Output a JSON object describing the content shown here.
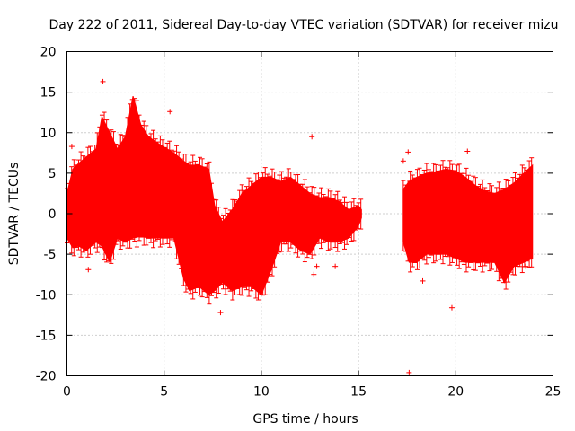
{
  "chart_data": {
    "type": "scatter",
    "title": "Day 222 of 2011, Sidereal Day-to-day VTEC variation (SDTVAR) for receiver mizu",
    "xlabel": "GPS time / hours",
    "ylabel": "SDTVAR / TECUs",
    "xlim": [
      0,
      25
    ],
    "ylim": [
      -20,
      20
    ],
    "x_ticks": [
      0,
      5,
      10,
      15,
      20,
      25
    ],
    "y_ticks": [
      -20,
      -15,
      -10,
      -5,
      0,
      5,
      10,
      15,
      20
    ],
    "grid": true,
    "marker": "+",
    "color": "#ff0000",
    "series": [
      {
        "name": "SDTVAR",
        "envelope": [
          {
            "x": 0.0,
            "lo": -3.0,
            "hi": 2.5
          },
          {
            "x": 0.3,
            "lo": -4.2,
            "hi": 5.5
          },
          {
            "x": 0.6,
            "lo": -4.0,
            "hi": 6.2
          },
          {
            "x": 1.0,
            "lo": -4.5,
            "hi": 7.0
          },
          {
            "x": 1.5,
            "lo": -3.5,
            "hi": 8.0
          },
          {
            "x": 1.8,
            "lo": -4.0,
            "hi": 12.0
          },
          {
            "x": 2.2,
            "lo": -6.0,
            "hi": 10.0
          },
          {
            "x": 2.6,
            "lo": -3.0,
            "hi": 8.0
          },
          {
            "x": 3.0,
            "lo": -3.5,
            "hi": 9.5
          },
          {
            "x": 3.4,
            "lo": -3.0,
            "hi": 14.5
          },
          {
            "x": 3.8,
            "lo": -2.8,
            "hi": 11.0
          },
          {
            "x": 4.2,
            "lo": -3.0,
            "hi": 9.5
          },
          {
            "x": 4.8,
            "lo": -3.0,
            "hi": 8.5
          },
          {
            "x": 5.5,
            "lo": -3.0,
            "hi": 7.5
          },
          {
            "x": 6.0,
            "lo": -8.0,
            "hi": 6.5
          },
          {
            "x": 6.3,
            "lo": -9.5,
            "hi": 6.0
          },
          {
            "x": 6.8,
            "lo": -9.0,
            "hi": 6.0
          },
          {
            "x": 7.3,
            "lo": -10.0,
            "hi": 5.5
          },
          {
            "x": 7.6,
            "lo": -9.5,
            "hi": 1.0
          },
          {
            "x": 8.0,
            "lo": -8.5,
            "hi": -1.0
          },
          {
            "x": 8.5,
            "lo": -9.5,
            "hi": 0.5
          },
          {
            "x": 9.0,
            "lo": -9.0,
            "hi": 2.5
          },
          {
            "x": 9.5,
            "lo": -9.0,
            "hi": 3.5
          },
          {
            "x": 10.0,
            "lo": -10.0,
            "hi": 4.5
          },
          {
            "x": 10.5,
            "lo": -7.0,
            "hi": 4.5
          },
          {
            "x": 11.0,
            "lo": -3.5,
            "hi": 4.0
          },
          {
            "x": 11.5,
            "lo": -3.5,
            "hi": 4.5
          },
          {
            "x": 12.0,
            "lo": -4.5,
            "hi": 3.5
          },
          {
            "x": 12.5,
            "lo": -5.0,
            "hi": 2.5
          },
          {
            "x": 13.0,
            "lo": -3.0,
            "hi": 2.0
          },
          {
            "x": 13.5,
            "lo": -3.5,
            "hi": 2.0
          },
          {
            "x": 14.0,
            "lo": -3.5,
            "hi": 1.5
          },
          {
            "x": 14.5,
            "lo": -3.0,
            "hi": 0.5
          },
          {
            "x": 15.0,
            "lo": -1.5,
            "hi": 1.0
          },
          {
            "x": 15.15,
            "lo": -0.5,
            "hi": 0.5
          },
          {
            "x": 17.3,
            "lo": -3.5,
            "hi": 3.0
          },
          {
            "x": 17.6,
            "lo": -6.0,
            "hi": 4.0
          },
          {
            "x": 18.0,
            "lo": -6.0,
            "hi": 4.5
          },
          {
            "x": 18.5,
            "lo": -5.0,
            "hi": 5.0
          },
          {
            "x": 19.0,
            "lo": -5.0,
            "hi": 5.2
          },
          {
            "x": 19.5,
            "lo": -5.0,
            "hi": 5.5
          },
          {
            "x": 20.0,
            "lo": -5.5,
            "hi": 5.3
          },
          {
            "x": 20.5,
            "lo": -6.0,
            "hi": 4.5
          },
          {
            "x": 21.0,
            "lo": -6.0,
            "hi": 3.5
          },
          {
            "x": 21.5,
            "lo": -6.0,
            "hi": 2.8
          },
          {
            "x": 22.0,
            "lo": -6.0,
            "hi": 2.5
          },
          {
            "x": 22.5,
            "lo": -8.5,
            "hi": 3.0
          },
          {
            "x": 23.0,
            "lo": -6.5,
            "hi": 3.8
          },
          {
            "x": 23.5,
            "lo": -6.0,
            "hi": 5.0
          },
          {
            "x": 23.95,
            "lo": -5.5,
            "hi": 6.0
          }
        ],
        "outliers": [
          {
            "x": 0.25,
            "y": 8.3
          },
          {
            "x": 1.1,
            "y": -6.9
          },
          {
            "x": 1.85,
            "y": 16.3
          },
          {
            "x": 5.3,
            "y": 12.6
          },
          {
            "x": 7.9,
            "y": -12.2
          },
          {
            "x": 12.6,
            "y": 9.5
          },
          {
            "x": 12.7,
            "y": -7.5
          },
          {
            "x": 12.85,
            "y": -6.5
          },
          {
            "x": 13.8,
            "y": -6.5
          },
          {
            "x": 17.3,
            "y": 6.5
          },
          {
            "x": 17.55,
            "y": 7.6
          },
          {
            "x": 17.6,
            "y": -19.6
          },
          {
            "x": 18.3,
            "y": -8.3
          },
          {
            "x": 19.8,
            "y": -11.6
          },
          {
            "x": 20.6,
            "y": 7.7
          },
          {
            "x": 23.6,
            "y": -6.5
          }
        ]
      }
    ]
  }
}
